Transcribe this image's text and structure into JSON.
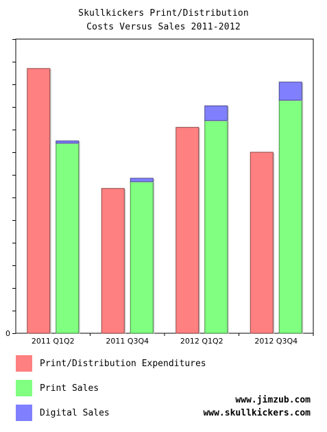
{
  "chart_data": {
    "type": "bar",
    "title_line1": "Skullkickers Print/Distribution",
    "title_line2": "Costs Versus Sales 2011-2012",
    "categories": [
      "2011 Q1Q2",
      "2011 Q3Q4",
      "2012 Q1Q2",
      "2012 Q3Q4"
    ],
    "y_zero_label": "0",
    "ylim": [
      0,
      13
    ],
    "grid": false,
    "legend_placement": "bottom-left",
    "series": [
      {
        "name": "Print/Distribution Expenditures",
        "color": "#ff8080",
        "stack": "expenditures",
        "values": [
          11.7,
          6.4,
          9.1,
          8.0
        ]
      },
      {
        "name": "Print Sales",
        "color": "#80ff80",
        "stack": "sales",
        "values": [
          8.4,
          6.7,
          9.4,
          10.3
        ]
      },
      {
        "name": "Digital Sales",
        "color": "#8080ff",
        "stack": "sales",
        "values": [
          0.1,
          0.15,
          0.65,
          0.8
        ]
      }
    ]
  },
  "credits": {
    "line1": "www.jimzub.com",
    "line2": "www.skullkickers.com"
  }
}
